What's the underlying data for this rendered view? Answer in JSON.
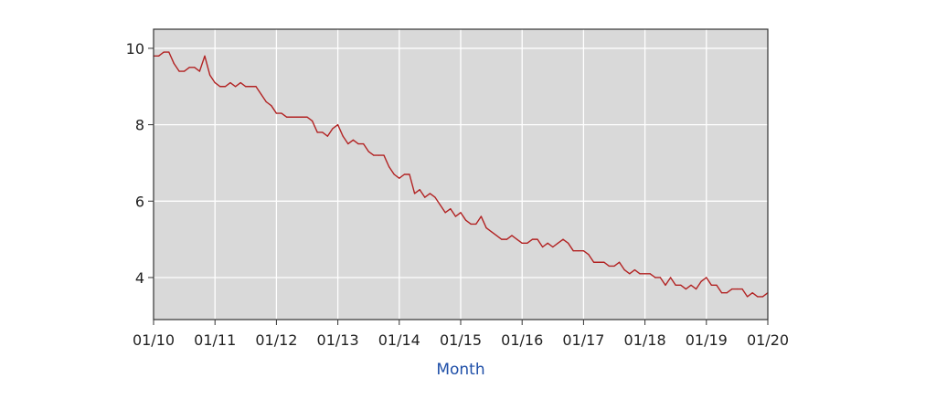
{
  "chart_data": {
    "type": "line",
    "title": "",
    "xlabel": "Month",
    "ylabel": "",
    "xlim": [
      "01/10",
      "01/20"
    ],
    "ylim": [
      2.9,
      10.5
    ],
    "grid": true,
    "colors": {
      "line": "#b22222",
      "plot_background": "#d9d9d9",
      "grid": "#ffffff",
      "xlabel": "#1f4fa8"
    },
    "x_ticks": [
      "01/10",
      "01/11",
      "01/12",
      "01/13",
      "01/14",
      "01/15",
      "01/16",
      "01/17",
      "01/18",
      "01/19",
      "01/20"
    ],
    "y_ticks": [
      "4",
      "6",
      "8",
      "10"
    ],
    "series": [
      {
        "x": [
          "01/10",
          "02/10",
          "03/10",
          "04/10",
          "05/10",
          "06/10",
          "07/10",
          "08/10",
          "09/10",
          "10/10",
          "11/10",
          "12/10",
          "01/11",
          "02/11",
          "03/11",
          "04/11",
          "05/11",
          "06/11",
          "07/11",
          "08/11",
          "09/11",
          "10/11",
          "11/11",
          "12/11",
          "01/12",
          "02/12",
          "03/12",
          "04/12",
          "05/12",
          "06/12",
          "07/12",
          "08/12",
          "09/12",
          "10/12",
          "11/12",
          "12/12",
          "01/13",
          "02/13",
          "03/13",
          "04/13",
          "05/13",
          "06/13",
          "07/13",
          "08/13",
          "09/13",
          "10/13",
          "11/13",
          "12/13",
          "01/14",
          "02/14",
          "03/14",
          "04/14",
          "05/14",
          "06/14",
          "07/14",
          "08/14",
          "09/14",
          "10/14",
          "11/14",
          "12/14",
          "01/15",
          "02/15",
          "03/15",
          "04/15",
          "05/15",
          "06/15",
          "07/15",
          "08/15",
          "09/15",
          "10/15",
          "11/15",
          "12/15",
          "01/16",
          "02/16",
          "03/16",
          "04/16",
          "05/16",
          "06/16",
          "07/16",
          "08/16",
          "09/16",
          "10/16",
          "11/16",
          "12/16",
          "01/17",
          "02/17",
          "03/17",
          "04/17",
          "05/17",
          "06/17",
          "07/17",
          "08/17",
          "09/17",
          "10/17",
          "11/17",
          "12/17",
          "01/18",
          "02/18",
          "03/18",
          "04/18",
          "05/18",
          "06/18",
          "07/18",
          "08/18",
          "09/18",
          "10/18",
          "11/18",
          "12/18",
          "01/19",
          "02/19",
          "03/19",
          "04/19",
          "05/19",
          "06/19",
          "07/19",
          "08/19",
          "09/19",
          "10/19",
          "11/19",
          "12/19",
          "01/20"
        ],
        "values": [
          9.8,
          9.8,
          9.9,
          9.9,
          9.6,
          9.4,
          9.4,
          9.5,
          9.5,
          9.4,
          9.8,
          9.3,
          9.1,
          9.0,
          9.0,
          9.1,
          9.0,
          9.1,
          9.0,
          9.0,
          9.0,
          8.8,
          8.6,
          8.5,
          8.3,
          8.3,
          8.2,
          8.2,
          8.2,
          8.2,
          8.2,
          8.1,
          7.8,
          7.8,
          7.7,
          7.9,
          8.0,
          7.7,
          7.5,
          7.6,
          7.5,
          7.5,
          7.3,
          7.2,
          7.2,
          7.2,
          6.9,
          6.7,
          6.6,
          6.7,
          6.7,
          6.2,
          6.3,
          6.1,
          6.2,
          6.1,
          5.9,
          5.7,
          5.8,
          5.6,
          5.7,
          5.5,
          5.4,
          5.4,
          5.6,
          5.3,
          5.2,
          5.1,
          5.0,
          5.0,
          5.1,
          5.0,
          4.9,
          4.9,
          5.0,
          5.0,
          4.8,
          4.9,
          4.8,
          4.9,
          5.0,
          4.9,
          4.7,
          4.7,
          4.7,
          4.6,
          4.4,
          4.4,
          4.4,
          4.3,
          4.3,
          4.4,
          4.2,
          4.1,
          4.2,
          4.1,
          4.1,
          4.1,
          4.0,
          4.0,
          3.8,
          4.0,
          3.8,
          3.8,
          3.7,
          3.8,
          3.7,
          3.9,
          4.0,
          3.8,
          3.8,
          3.6,
          3.6,
          3.7,
          3.7,
          3.7,
          3.5,
          3.6,
          3.5,
          3.5,
          3.6
        ]
      }
    ]
  }
}
